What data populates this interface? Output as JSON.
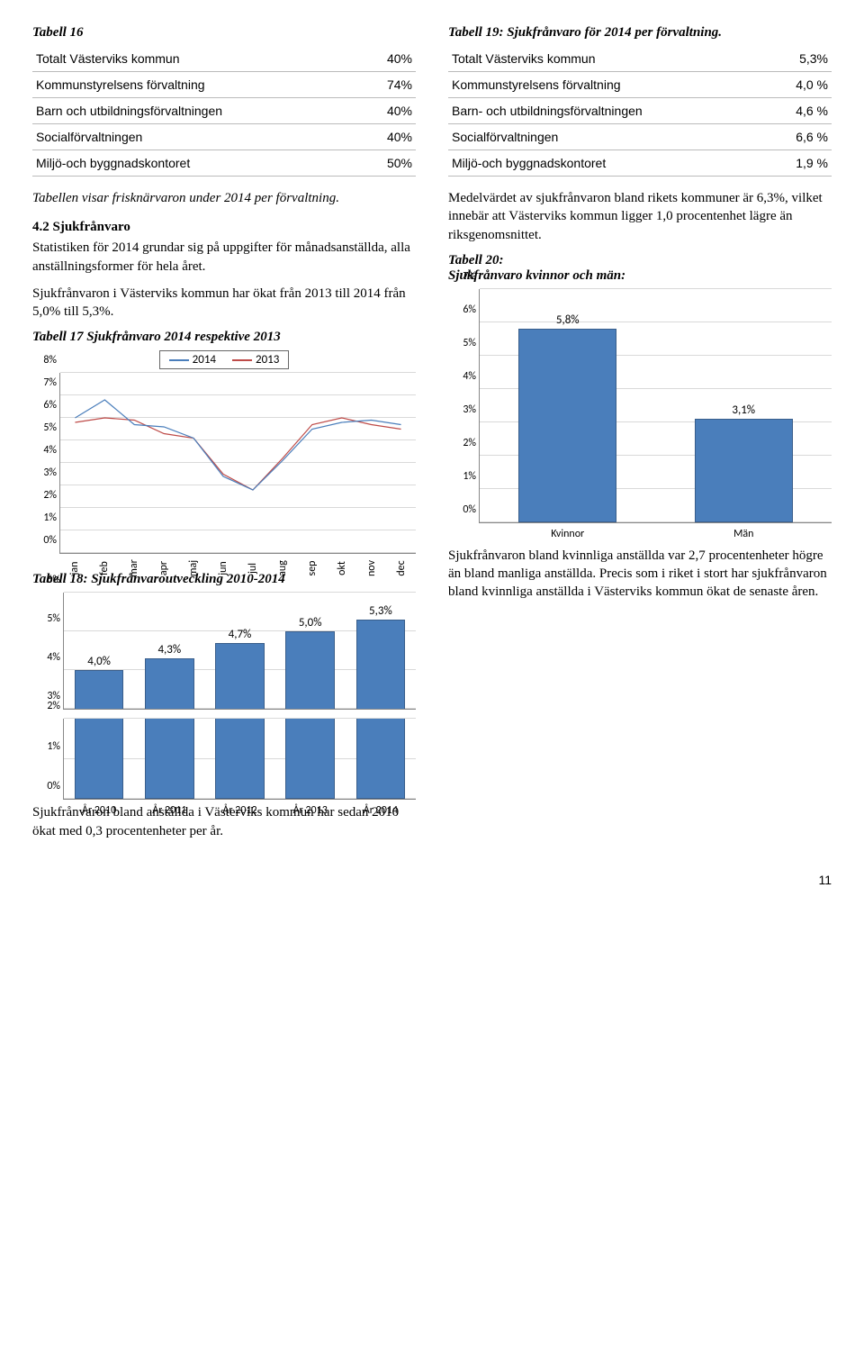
{
  "col_left": {
    "tab16": {
      "title": "Tabell 16",
      "rows": [
        {
          "label": "Totalt Västerviks kommun",
          "val": "40%"
        },
        {
          "label": "Kommunstyrelsens förvaltning",
          "val": "74%"
        },
        {
          "label": "Barn och utbildningsförvaltningen",
          "val": "40%"
        },
        {
          "label": "Socialförvaltningen",
          "val": "40%"
        },
        {
          "label": "Miljö-och byggnadskontoret",
          "val": "50%"
        }
      ],
      "note": "Tabellen visar frisknärvaron under 2014 per förvaltning."
    },
    "sect42": {
      "heading": "4.2 Sjukfrånvaro",
      "p1": "Statistiken för 2014 grundar sig på uppgifter för månadsanställda, alla anställningsformer för hela året.",
      "p2": "Sjukfrånvaron i Västerviks kommun har ökat från 2013 till 2014 från 5,0% till 5,3%."
    },
    "tab17": {
      "title": "Tabell 17 Sjukfrånvaro 2014 respektive 2013",
      "legend": {
        "s1": "2014",
        "s2": "2013"
      },
      "colors": {
        "s1": "#4a7ebb",
        "s2": "#be4b48",
        "grid": "#d9d9d9",
        "axis": "#888888",
        "bg": "#ffffff"
      },
      "ylim": [
        0,
        8
      ],
      "ytick_step": 1,
      "ylabels": [
        "0%",
        "1%",
        "2%",
        "3%",
        "4%",
        "5%",
        "6%",
        "7%",
        "8%"
      ],
      "xlabels": [
        "jan",
        "feb",
        "mar",
        "apr",
        "maj",
        "jun",
        "jul",
        "aug",
        "sep",
        "okt",
        "nov",
        "dec"
      ],
      "series": {
        "2014": [
          6.0,
          6.8,
          5.7,
          5.6,
          5.1,
          3.4,
          2.8,
          4.1,
          5.5,
          5.8,
          5.9,
          5.7
        ],
        "2013": [
          5.8,
          6.0,
          5.9,
          5.3,
          5.1,
          3.5,
          2.8,
          4.2,
          5.7,
          6.0,
          5.7,
          5.5
        ]
      }
    },
    "tab18": {
      "title": "Tabell 18: Sjukfrånvaroutveckling 2010-2014",
      "colors": {
        "bar": "#4a7ebb",
        "border": "#395e8b",
        "grid": "#d9d9d9",
        "axis": "#888888"
      },
      "ylim": [
        0,
        6
      ],
      "ytick_step": 1,
      "ylabels_upper": [
        "3%",
        "4%",
        "5%",
        "6%"
      ],
      "ylabels_lower": [
        "0%",
        "1%",
        "2%"
      ],
      "bar_width_pct": 14,
      "categories": [
        "År 2010",
        "År 2011",
        "År 2012",
        "År 2013",
        "År 2014"
      ],
      "values": [
        4.0,
        4.3,
        4.7,
        5.0,
        5.3
      ],
      "value_labels": [
        "4,0%",
        "4,3%",
        "4,7%",
        "5,0%",
        "5,3%"
      ]
    }
  },
  "col_right": {
    "tab19": {
      "title": "Tabell 19: Sjukfrånvaro för 2014 per förvaltning.",
      "rows": [
        {
          "label": "Totalt Västerviks kommun",
          "val": "5,3%"
        },
        {
          "label": "Kommunstyrelsens förvaltning",
          "val": "4,0 %"
        },
        {
          "label": "Barn- och utbildningsförvaltningen",
          "val": "4,6 %"
        },
        {
          "label": "Socialförvaltningen",
          "val": "6,6 %"
        },
        {
          "label": "Miljö-och byggnadskontoret",
          "val": "1,9 %"
        }
      ]
    },
    "para_medel": "Medelvärdet av sjukfrånvaron bland rikets kommuner är 6,3%, vilket innebär att Västerviks kommun ligger 1,0 procentenhet lägre än riksgenomsnittet.",
    "tab20": {
      "title_l1": "Tabell 20:",
      "title_l2": "Sjukfrånvaro kvinnor och män:",
      "colors": {
        "bar": "#4a7ebb",
        "border": "#395e8b",
        "grid": "#d9d9d9",
        "axis": "#888888"
      },
      "ylim": [
        0,
        7
      ],
      "ytick_step": 1,
      "ylabels": [
        "0%",
        "1%",
        "2%",
        "3%",
        "4%",
        "5%",
        "6%",
        "7%"
      ],
      "categories": [
        "Kvinnor",
        "Män"
      ],
      "values": [
        5.8,
        3.1
      ],
      "value_labels": [
        "5,8%",
        "3,1%"
      ],
      "bar_width_pct": 28
    },
    "para_kvinnor": "Sjukfrånvaron bland kvinnliga anställda var 2,7 procentenheter högre än bland manliga anställda. Precis som i riket i stort har sjukfrånvaron bland kvinnliga anställda i Västerviks kommun ökat de senaste åren."
  },
  "bottom_para": "Sjukfrånvaron bland anställda i Västerviks kommun har sedan 2010 ökat med 0,3 procentenheter per år.",
  "pagenum": "11"
}
